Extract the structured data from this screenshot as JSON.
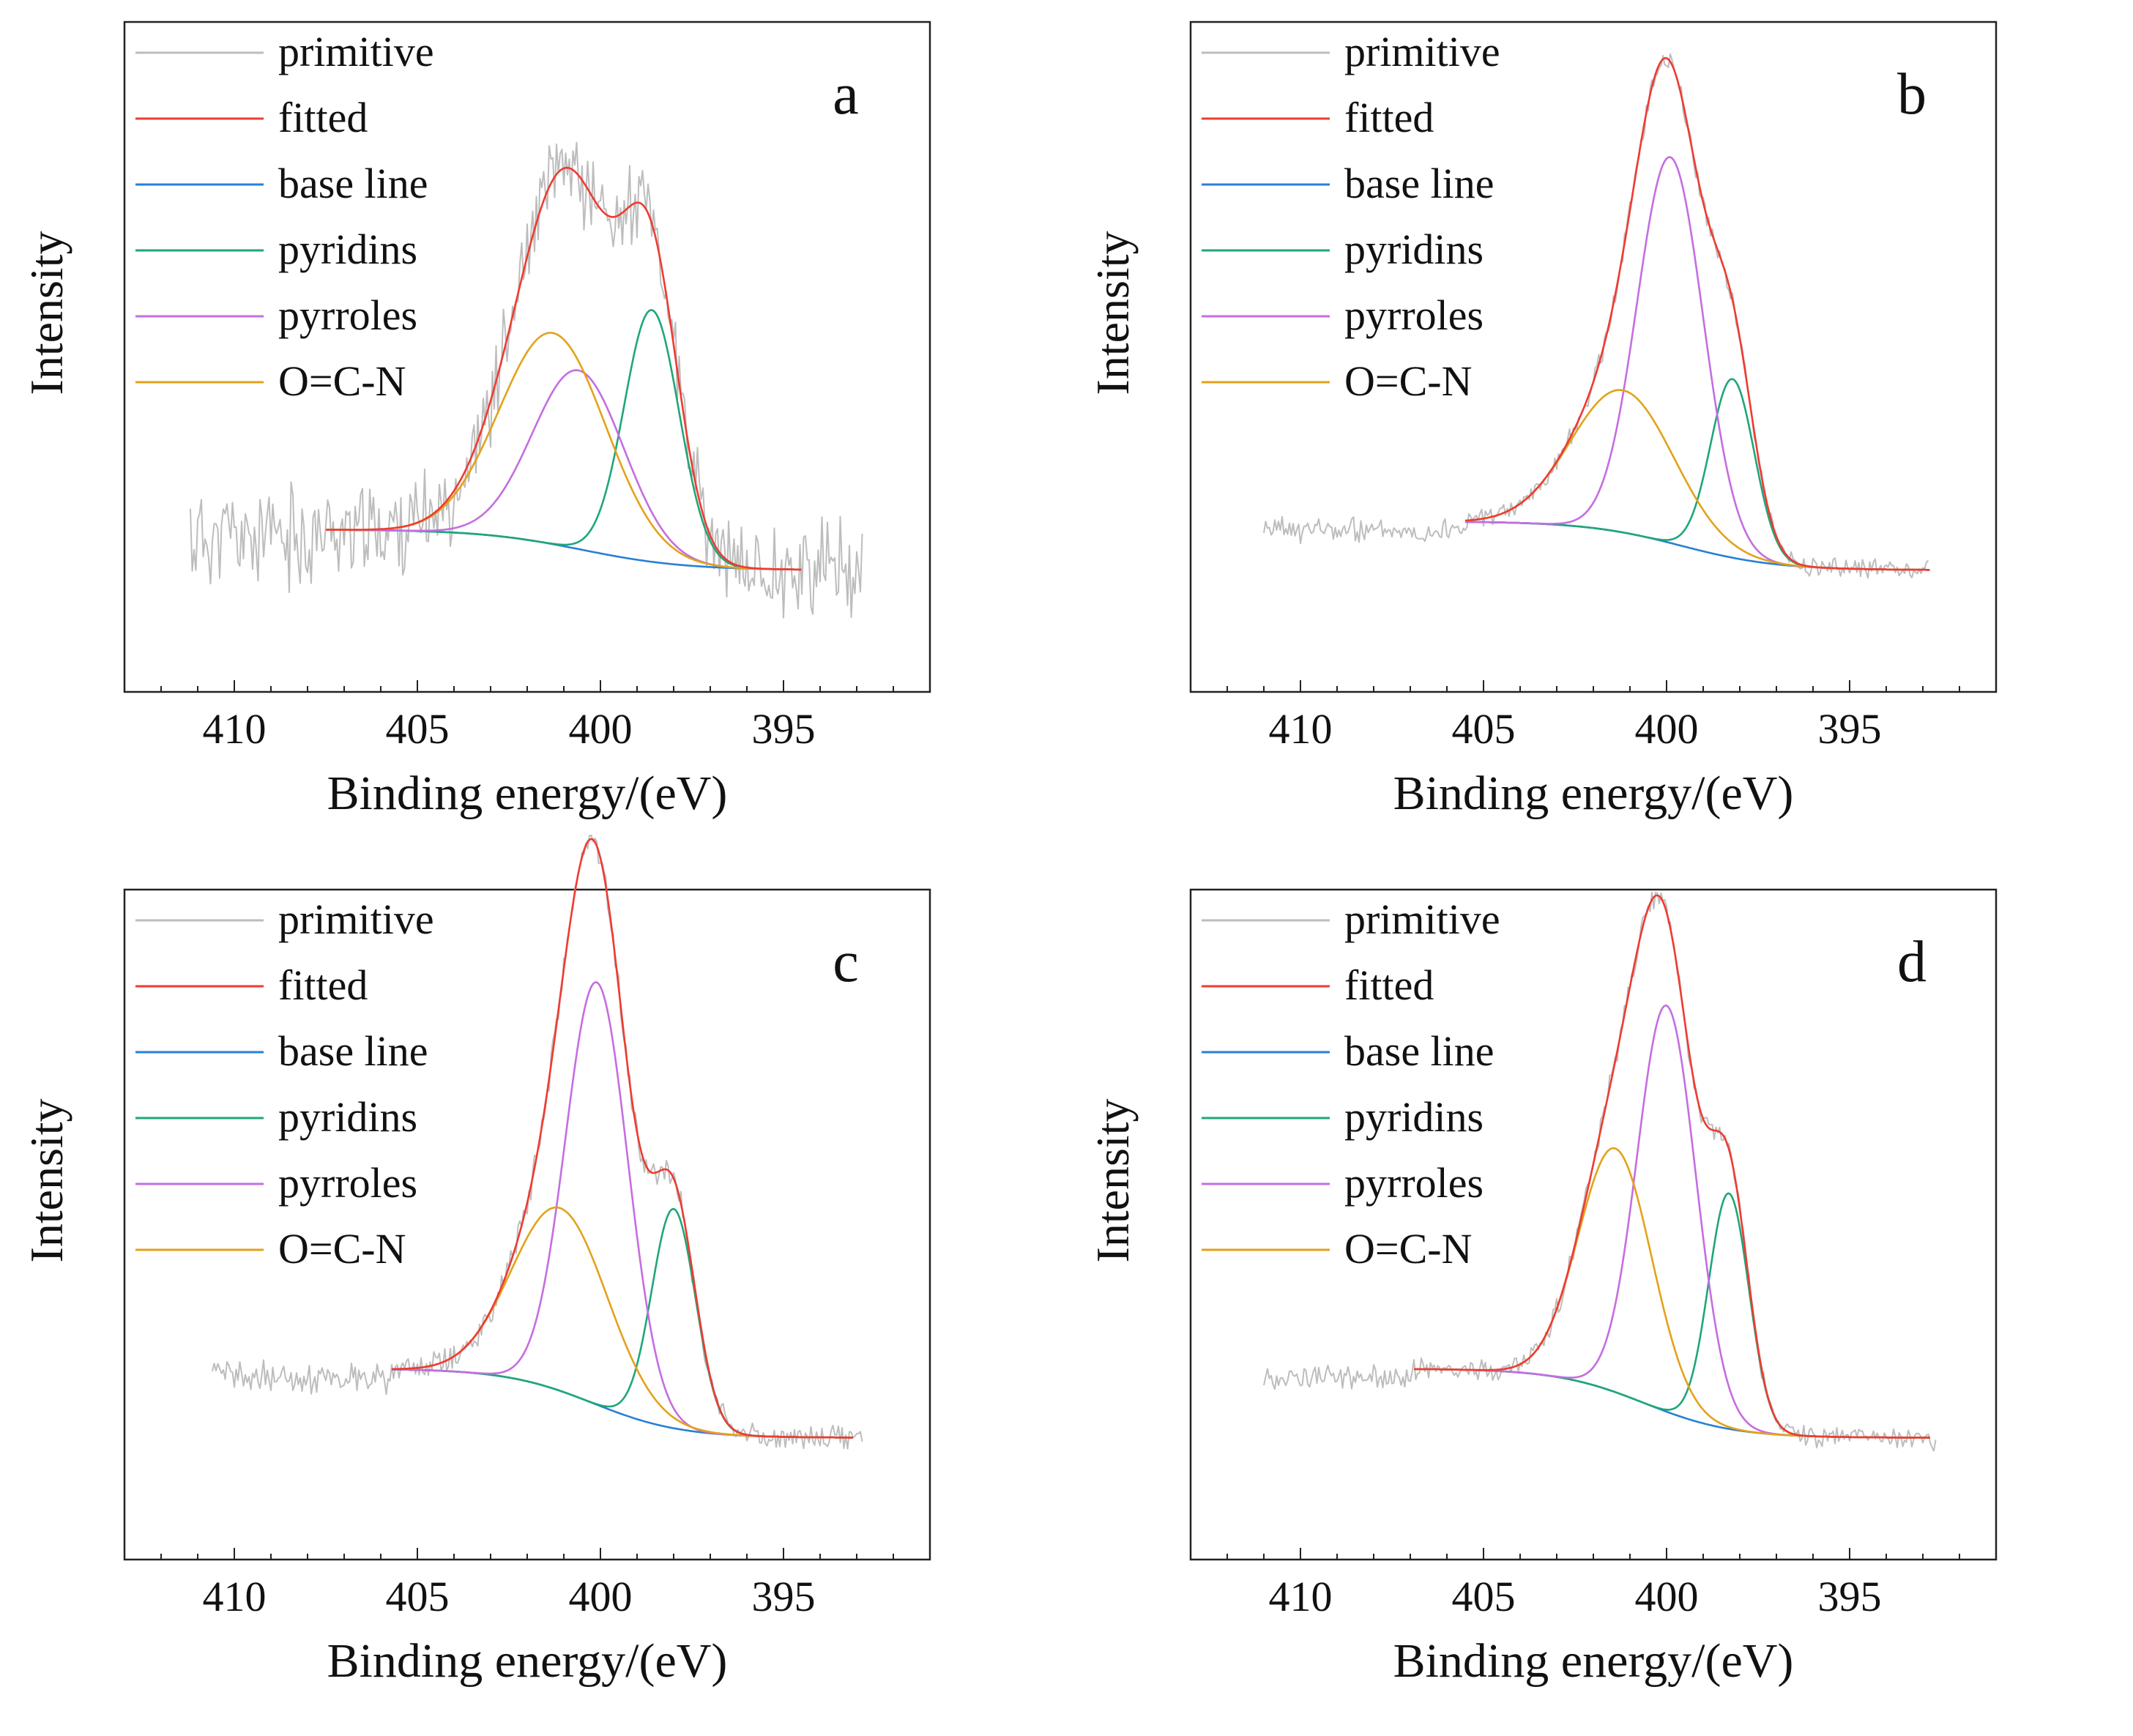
{
  "chart_data": [
    {
      "type": "line",
      "panel_label": "a",
      "xlabel": "Binding energy/(eV)",
      "ylabel": "Intensity",
      "xlim": [
        413,
        391
      ],
      "ylim": [
        -0.3,
        1.35
      ],
      "x_ticks": [
        "410",
        "405",
        "400",
        "395"
      ],
      "x_tick_values": [
        410,
        405,
        400,
        395
      ],
      "legend_position": "top-left",
      "series": [
        {
          "name": "primitive",
          "color": "#bdbdbd",
          "kind": "noisy",
          "x_range": [
            411.2,
            392.8
          ],
          "noise": 0.085,
          "seed": 11
        },
        {
          "name": "fitted",
          "color": "#ee3b33",
          "kind": "sum",
          "x_range": [
            407.5,
            394.5
          ]
        },
        {
          "name": "base line",
          "color": "#2a7fd4",
          "kind": "baseline",
          "x_range": [
            407.5,
            394.5
          ],
          "high": 0.1,
          "low": 0.0,
          "center": 400.5,
          "width": 1.4
        },
        {
          "name": "pyridins",
          "color": "#1fa67a",
          "kind": "peak",
          "center": 398.6,
          "amplitude": 0.62,
          "sigma": 0.75
        },
        {
          "name": "pyrroles",
          "color": "#c46ee0",
          "kind": "peak",
          "center": 400.6,
          "amplitude": 0.44,
          "sigma": 1.25
        },
        {
          "name": "O=C-N",
          "color": "#e3a21a",
          "kind": "peak",
          "center": 401.3,
          "amplitude": 0.52,
          "sigma": 1.45
        }
      ]
    },
    {
      "type": "line",
      "panel_label": "b",
      "xlabel": "Binding energy/(eV)",
      "ylabel": "Intensity",
      "xlim": [
        413,
        391
      ],
      "ylim": [
        -0.3,
        1.35
      ],
      "x_ticks": [
        "410",
        "405",
        "400",
        "395"
      ],
      "x_tick_values": [
        410,
        405,
        400,
        395
      ],
      "legend_position": "top-left",
      "series": [
        {
          "name": "primitive",
          "color": "#bdbdbd",
          "kind": "noisy",
          "x_range": [
            411,
            392.8
          ],
          "noise": 0.02,
          "seed": 23
        },
        {
          "name": "fitted",
          "color": "#ee3b33",
          "kind": "sum",
          "x_range": [
            405.5,
            392.8
          ]
        },
        {
          "name": "base line",
          "color": "#2a7fd4",
          "kind": "baseline",
          "x_range": [
            405.5,
            392.8
          ],
          "high": 0.12,
          "low": 0.0,
          "center": 399.6,
          "width": 1.3
        },
        {
          "name": "pyridins",
          "color": "#1fa67a",
          "kind": "peak",
          "center": 398.2,
          "amplitude": 0.44,
          "sigma": 0.6
        },
        {
          "name": "pyrroles",
          "color": "#c46ee0",
          "kind": "peak",
          "center": 399.9,
          "amplitude": 0.95,
          "sigma": 0.9
        },
        {
          "name": "O=C-N",
          "color": "#e3a21a",
          "kind": "peak",
          "center": 401.2,
          "amplitude": 0.35,
          "sigma": 1.4
        }
      ]
    },
    {
      "type": "line",
      "panel_label": "c",
      "xlabel": "Binding energy/(eV)",
      "ylabel": "Intensity",
      "xlim": [
        413,
        391
      ],
      "ylim": [
        -0.3,
        1.35
      ],
      "x_ticks": [
        "410",
        "405",
        "400",
        "395"
      ],
      "x_tick_values": [
        410,
        405,
        400,
        395
      ],
      "legend_position": "top-left",
      "series": [
        {
          "name": "primitive",
          "color": "#bdbdbd",
          "kind": "noisy",
          "x_range": [
            410.6,
            392.8
          ],
          "noise": 0.025,
          "seed": 37
        },
        {
          "name": "fitted",
          "color": "#ee3b33",
          "kind": "sum",
          "x_range": [
            405.7,
            393.1
          ]
        },
        {
          "name": "base line",
          "color": "#2a7fd4",
          "kind": "baseline",
          "x_range": [
            405.7,
            393.1
          ],
          "high": 0.17,
          "low": 0.0,
          "center": 400.2,
          "width": 1.2
        },
        {
          "name": "pyridins",
          "color": "#1fa67a",
          "kind": "peak",
          "center": 398.0,
          "amplitude": 0.54,
          "sigma": 0.6
        },
        {
          "name": "pyrroles",
          "color": "#c46ee0",
          "kind": "peak",
          "center": 400.1,
          "amplitude": 1.04,
          "sigma": 0.85
        },
        {
          "name": "O=C-N",
          "color": "#e3a21a",
          "kind": "peak",
          "center": 401.1,
          "amplitude": 0.45,
          "sigma": 1.3
        }
      ]
    },
    {
      "type": "line",
      "panel_label": "d",
      "xlabel": "Binding energy/(eV)",
      "ylabel": "Intensity",
      "xlim": [
        413,
        391
      ],
      "ylim": [
        -0.3,
        1.35
      ],
      "x_ticks": [
        "410",
        "405",
        "400",
        "395"
      ],
      "x_tick_values": [
        410,
        405,
        400,
        395
      ],
      "legend_position": "top-left",
      "series": [
        {
          "name": "primitive",
          "color": "#bdbdbd",
          "kind": "noisy",
          "x_range": [
            411,
            392.6
          ],
          "noise": 0.02,
          "seed": 53
        },
        {
          "name": "fitted",
          "color": "#ee3b33",
          "kind": "sum",
          "x_range": [
            406.9,
            392.8
          ]
        },
        {
          "name": "base line",
          "color": "#2a7fd4",
          "kind": "baseline",
          "x_range": [
            406.9,
            392.8
          ],
          "high": 0.17,
          "low": 0.0,
          "center": 400.6,
          "width": 1.2
        },
        {
          "name": "pyridins",
          "color": "#1fa67a",
          "kind": "peak",
          "center": 398.3,
          "amplitude": 0.58,
          "sigma": 0.55
        },
        {
          "name": "pyrroles",
          "color": "#c46ee0",
          "kind": "peak",
          "center": 400.0,
          "amplitude": 1.0,
          "sigma": 0.8
        },
        {
          "name": "O=C-N",
          "color": "#e3a21a",
          "kind": "peak",
          "center": 401.4,
          "amplitude": 0.6,
          "sigma": 1.0
        }
      ]
    }
  ]
}
